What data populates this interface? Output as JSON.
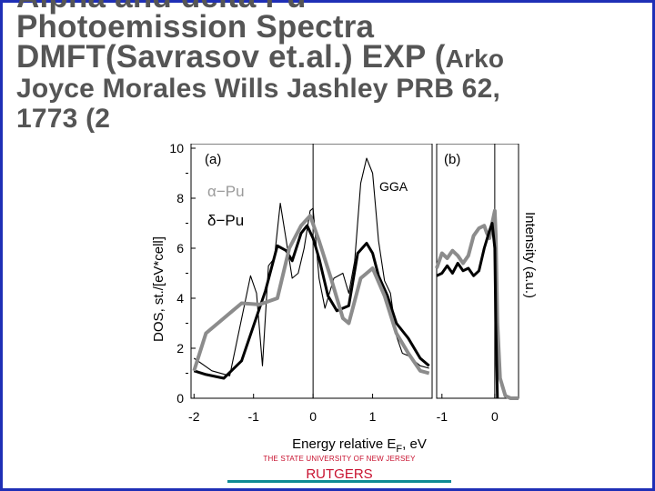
{
  "slide": {
    "title_lines": [
      "Alpha and delta Pu",
      "Photoemission Spectra",
      "DMFT(Savrasov et.al.) EXP (",
      "Joyce Morales Wills Jashley PRB 62,",
      "1773 (2"
    ],
    "title_arko": "Arko",
    "footer_university": "THE STATE UNIVERSITY OF NEW JERSEY",
    "footer_name": "RUTGERS"
  },
  "colors": {
    "frame": "#1f2fb6",
    "title": "#555555",
    "gray_curve": "#8c8c8c",
    "legend_alpha": "#9a9a9a",
    "footer_text": "#c8102e",
    "footer_rule": "#0e8a94"
  },
  "chart_data": [
    {
      "type": "line",
      "panel_label": "(a)",
      "ylabel": "DOS, st./[eV*cell]",
      "xlabel": "Energy relative E_F, eV",
      "xlim": [
        -2.05,
        2.0
      ],
      "ylim": [
        0,
        10
      ],
      "xticks": [
        "-2",
        "-1",
        "0",
        "1"
      ],
      "yticks": [
        "0",
        "2",
        "4",
        "6",
        "8",
        "10"
      ],
      "legend": [
        "α−Pu",
        "δ−Pu"
      ],
      "annotation": "GGA",
      "series": [
        {
          "name": "GGA",
          "style": "thin-black",
          "x": [
            -2.0,
            -1.7,
            -1.4,
            -1.05,
            -0.95,
            -0.85,
            -0.75,
            -0.65,
            -0.55,
            -0.45,
            -0.35,
            -0.25,
            -0.15,
            -0.05,
            0.0,
            0.1,
            0.2,
            0.35,
            0.5,
            0.6,
            0.7,
            0.8,
            0.9,
            1.0,
            1.1,
            1.2,
            1.3,
            1.4,
            1.5,
            1.6,
            1.7,
            1.8,
            1.95
          ],
          "y": [
            1.6,
            1.1,
            0.9,
            4.9,
            4.2,
            1.3,
            5.3,
            5.6,
            7.8,
            6.3,
            4.8,
            5.0,
            6.0,
            7.5,
            7.6,
            4.8,
            3.6,
            4.8,
            5.0,
            4.2,
            5.5,
            8.6,
            9.6,
            9.0,
            6.3,
            4.7,
            4.2,
            2.5,
            1.8,
            1.7,
            1.5,
            1.3,
            1.2
          ]
        },
        {
          "name": "α−Pu",
          "style": "thick-gray",
          "x": [
            -2.0,
            -1.8,
            -1.5,
            -1.2,
            -0.9,
            -0.6,
            -0.4,
            -0.2,
            -0.05,
            0.1,
            0.3,
            0.5,
            0.6,
            0.8,
            1.0,
            1.2,
            1.4,
            1.6,
            1.8,
            1.95
          ],
          "y": [
            1.1,
            2.6,
            3.2,
            3.8,
            3.75,
            4.0,
            6.0,
            6.9,
            7.3,
            6.3,
            4.8,
            3.2,
            3.0,
            4.8,
            5.2,
            4.1,
            2.6,
            1.8,
            1.1,
            1.0
          ]
        },
        {
          "name": "δ−Pu",
          "style": "thick-black",
          "x": [
            -2.0,
            -1.8,
            -1.5,
            -1.2,
            -1.0,
            -0.8,
            -0.6,
            -0.45,
            -0.35,
            -0.2,
            -0.1,
            0.0,
            0.1,
            0.25,
            0.4,
            0.6,
            0.75,
            0.9,
            1.0,
            1.1,
            1.25,
            1.4,
            1.6,
            1.8,
            1.95
          ],
          "y": [
            1.1,
            0.95,
            0.8,
            1.5,
            2.9,
            4.3,
            6.1,
            5.9,
            5.5,
            6.6,
            6.9,
            6.4,
            5.6,
            4.1,
            3.5,
            3.7,
            5.8,
            6.2,
            5.8,
            4.9,
            4.1,
            3.0,
            2.4,
            1.6,
            1.3
          ]
        }
      ]
    },
    {
      "type": "line",
      "panel_label": "(b)",
      "ylabel": "Intensity (a.u.)",
      "xlim": [
        -1.1,
        0.45
      ],
      "xticks": [
        "-1",
        "0"
      ],
      "series": [
        {
          "style": "thick-gray",
          "x": [
            -1.1,
            -1.0,
            -0.9,
            -0.8,
            -0.7,
            -0.6,
            -0.5,
            -0.4,
            -0.3,
            -0.2,
            -0.15,
            -0.1,
            -0.05,
            0.0,
            0.02,
            0.05,
            0.1,
            0.2,
            0.3,
            0.45
          ],
          "y": [
            5.2,
            5.8,
            5.6,
            5.9,
            5.7,
            5.4,
            5.7,
            6.5,
            6.8,
            6.9,
            6.6,
            6.4,
            7.0,
            7.5,
            6.5,
            3.0,
            0.8,
            0.1,
            0.0,
            0.0
          ]
        },
        {
          "style": "thick-black",
          "x": [
            -1.1,
            -1.0,
            -0.9,
            -0.8,
            -0.7,
            -0.6,
            -0.5,
            -0.4,
            -0.3,
            -0.2,
            -0.1,
            -0.05,
            0.0,
            0.02,
            0.05
          ],
          "y": [
            4.9,
            5.0,
            5.3,
            5.0,
            5.4,
            5.1,
            5.2,
            4.9,
            5.1,
            6.0,
            6.7,
            7.0,
            6.0,
            3.0,
            0.0
          ]
        }
      ]
    }
  ]
}
